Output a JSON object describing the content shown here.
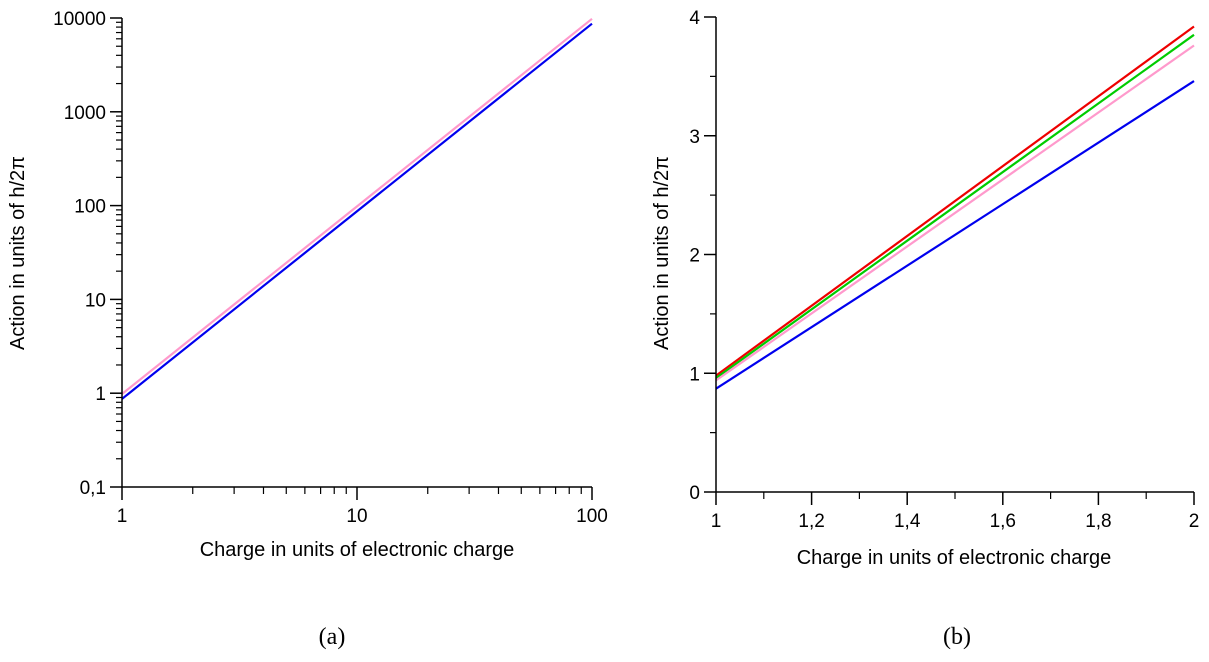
{
  "chart_data": [
    {
      "id": "a",
      "type": "line",
      "caption": "(a)",
      "xlabel": "Charge in units of electronic charge",
      "ylabel": "Action in units of h/2π",
      "xscale": "log",
      "yscale": "log",
      "xlim": [
        1,
        100
      ],
      "ylim": [
        0.1,
        10000
      ],
      "xticks": [
        1,
        10,
        100
      ],
      "xtick_labels": [
        "1",
        "10",
        "100"
      ],
      "yticks": [
        0.1,
        1,
        10,
        100,
        1000,
        10000
      ],
      "ytick_labels": [
        "0,1",
        "1",
        "10",
        "100",
        "1000",
        "10000"
      ],
      "grid": false,
      "series": [
        {
          "color": "#ff99cc",
          "x": [
            1,
            100
          ],
          "y": [
            0.98,
            9800
          ]
        },
        {
          "color": "#0000ee",
          "x": [
            1,
            100
          ],
          "y": [
            0.87,
            8700
          ]
        }
      ]
    },
    {
      "id": "b",
      "type": "line",
      "caption": "(b)",
      "xlabel": "Charge in units of electronic charge",
      "ylabel": "Action in units of h/2π",
      "xscale": "linear",
      "yscale": "linear",
      "xlim": [
        1,
        2
      ],
      "ylim": [
        0,
        4
      ],
      "xticks": [
        1,
        1.2,
        1.4,
        1.6,
        1.8,
        2
      ],
      "xtick_labels": [
        "1",
        "1,2",
        "1,4",
        "1,6",
        "1,8",
        "2"
      ],
      "yticks": [
        0,
        1,
        2,
        3,
        4
      ],
      "ytick_labels": [
        "0",
        "1",
        "2",
        "3",
        "4"
      ],
      "grid": false,
      "series": [
        {
          "color": "#ee0000",
          "x": [
            1,
            2
          ],
          "y": [
            0.98,
            3.92
          ]
        },
        {
          "color": "#00cc00",
          "x": [
            1,
            2
          ],
          "y": [
            0.96,
            3.85
          ]
        },
        {
          "color": "#ff99cc",
          "x": [
            1,
            2
          ],
          "y": [
            0.94,
            3.76
          ]
        },
        {
          "color": "#0000ee",
          "x": [
            1,
            2
          ],
          "y": [
            0.87,
            3.46
          ]
        }
      ]
    }
  ]
}
